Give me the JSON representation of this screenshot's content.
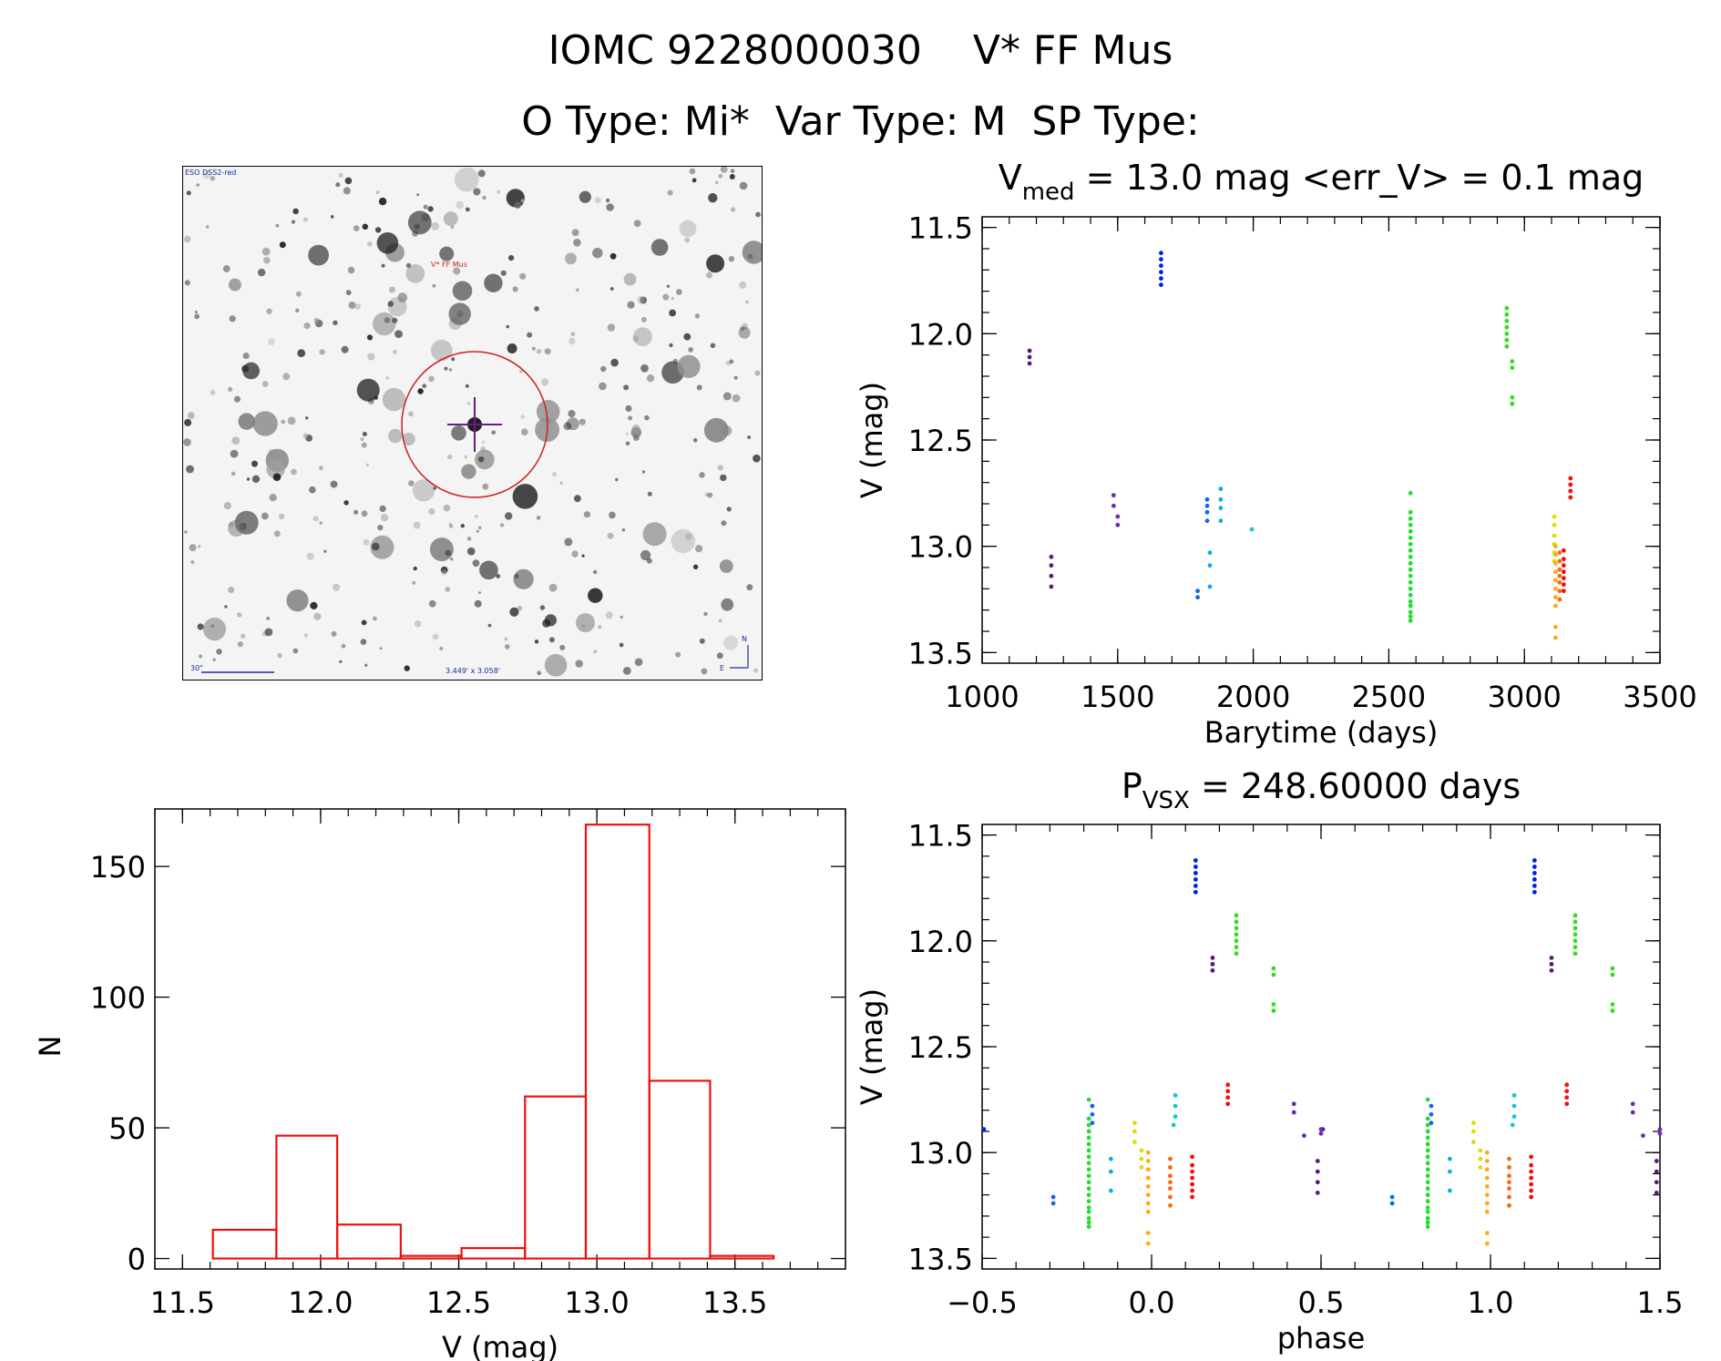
{
  "header": {
    "line1": "IOMC 9228000030    V* FF Mus",
    "line2": "O Type: Mi*  Var Type: M  SP Type:"
  },
  "finding_chart": {
    "survey_label": "ESO DSS2-red",
    "target_label": "V* FF Mus",
    "scale_label": "30\"",
    "fov_label": "3.449' x 3.058'",
    "compass_n": "N",
    "compass_e": "E"
  },
  "chart_data": [
    {
      "id": "lightcurve",
      "type": "scatter",
      "title_prefix": "V",
      "title_sub": "med",
      "title_rest": " = 13.0 mag <err_V> = 0.1 mag",
      "xlabel": "Barytime (days)",
      "ylabel": "V (mag)",
      "xlim": [
        1000,
        3500
      ],
      "ylim": [
        13.55,
        11.45
      ],
      "xticks": [
        "1000",
        "1500",
        "2000",
        "2500",
        "3000",
        "3500"
      ],
      "yticks": [
        "11.5",
        "12.0",
        "12.5",
        "13.0",
        "13.5"
      ],
      "groups": [
        {
          "color": "#5a1a78",
          "t": [
            1175,
            1175,
            1175
          ],
          "v": [
            12.08,
            12.11,
            12.14
          ]
        },
        {
          "color": "#5a1a78",
          "t": [
            1255,
            1255,
            1255,
            1255
          ],
          "v": [
            13.05,
            13.09,
            13.14,
            13.19
          ]
        },
        {
          "color": "#6a2ab8",
          "t": [
            1485,
            1485,
            1500,
            1500
          ],
          "v": [
            12.76,
            12.81,
            12.86,
            12.9
          ]
        },
        {
          "color": "#0022dd",
          "t": [
            1660,
            1660,
            1660,
            1660,
            1660,
            1660
          ],
          "v": [
            11.62,
            11.65,
            11.68,
            11.71,
            11.74,
            11.77
          ]
        },
        {
          "color": "#1166ee",
          "t": [
            1795,
            1795,
            1830,
            1830,
            1830,
            1830
          ],
          "v": [
            13.21,
            13.24,
            12.78,
            12.81,
            12.84,
            12.88
          ]
        },
        {
          "color": "#11aaee",
          "t": [
            1840,
            1840,
            1840,
            1880,
            1880,
            1880,
            1880
          ],
          "v": [
            13.03,
            13.09,
            13.19,
            12.73,
            12.78,
            12.82,
            12.88
          ]
        },
        {
          "color": "#11cccc",
          "t": [
            1995
          ],
          "v": [
            12.92
          ]
        },
        {
          "color": "#22dd33",
          "t": [
            2580,
            2580,
            2580,
            2580,
            2580,
            2580,
            2580,
            2580,
            2580,
            2580,
            2580,
            2580,
            2580,
            2580,
            2580,
            2580,
            2580,
            2580,
            2580,
            2580
          ],
          "v": [
            12.75,
            12.84,
            12.87,
            12.9,
            12.93,
            12.96,
            12.99,
            13.02,
            13.05,
            13.08,
            13.11,
            13.14,
            13.17,
            13.2,
            13.23,
            13.26,
            13.28,
            13.31,
            13.33,
            13.35
          ]
        },
        {
          "color": "#33dd22",
          "t": [
            2935,
            2935,
            2935,
            2935,
            2935,
            2935,
            2935,
            2955,
            2955,
            2955,
            2955
          ],
          "v": [
            11.88,
            11.91,
            11.94,
            11.97,
            12.0,
            12.03,
            12.06,
            12.13,
            12.16,
            12.3,
            12.33
          ]
        },
        {
          "color": "#dddd11",
          "t": [
            3110,
            3110,
            3110,
            3110,
            3110,
            3110
          ],
          "v": [
            12.86,
            12.9,
            12.95,
            12.99,
            13.03,
            13.07
          ]
        },
        {
          "color": "#ffaa11",
          "t": [
            3115,
            3115,
            3115,
            3115,
            3115,
            3115,
            3115,
            3115,
            3115,
            3115
          ],
          "v": [
            13.0,
            13.04,
            13.08,
            13.12,
            13.16,
            13.2,
            13.24,
            13.28,
            13.38,
            13.43
          ]
        },
        {
          "color": "#ff6611",
          "t": [
            3130,
            3130,
            3130,
            3130,
            3130,
            3130,
            3130
          ],
          "v": [
            13.03,
            13.07,
            13.11,
            13.14,
            13.17,
            13.21,
            13.25
          ]
        },
        {
          "color": "#ee1111",
          "t": [
            3145,
            3145,
            3145,
            3145,
            3145,
            3145,
            3145,
            3170,
            3170,
            3170,
            3170
          ],
          "v": [
            13.02,
            13.06,
            13.09,
            13.12,
            13.15,
            13.18,
            13.21,
            12.68,
            12.71,
            12.74,
            12.77
          ]
        }
      ]
    },
    {
      "id": "histogram",
      "type": "bar",
      "xlabel": "V (mag)",
      "ylabel": "N",
      "xlim": [
        11.4,
        13.9
      ],
      "ylim": [
        -4,
        172
      ],
      "xticks": [
        "11.5",
        "12.0",
        "12.5",
        "13.0",
        "13.5"
      ],
      "yticks": [
        "0",
        "50",
        "100",
        "150"
      ],
      "bins": [
        {
          "x0": 11.61,
          "x1": 11.84,
          "n": 11
        },
        {
          "x0": 11.84,
          "x1": 12.06,
          "n": 47
        },
        {
          "x0": 12.06,
          "x1": 12.29,
          "n": 13
        },
        {
          "x0": 12.29,
          "x1": 12.51,
          "n": 1
        },
        {
          "x0": 12.51,
          "x1": 12.74,
          "n": 4
        },
        {
          "x0": 12.74,
          "x1": 12.96,
          "n": 62
        },
        {
          "x0": 12.96,
          "x1": 13.19,
          "n": 166
        },
        {
          "x0": 13.19,
          "x1": 13.41,
          "n": 68
        },
        {
          "x0": 13.41,
          "x1": 13.64,
          "n": 1
        }
      ]
    },
    {
      "id": "phased",
      "type": "scatter",
      "title_prefix": "P",
      "title_sub": "VSX",
      "title_rest": " = 248.60000 days",
      "xlabel": "phase",
      "ylabel": "V (mag)",
      "xlim": [
        -0.5,
        1.5
      ],
      "ylim": [
        13.55,
        11.45
      ],
      "xticks": [
        "−0.5",
        "0.0",
        "0.5",
        "1.0",
        "1.5"
      ],
      "yticks": [
        "11.5",
        "12.0",
        "12.5",
        "13.0",
        "13.5"
      ],
      "period_shift": 1.0,
      "groups": [
        {
          "color": "#0022dd",
          "p": [
            -0.495,
            0.13,
            0.13,
            0.13,
            0.13,
            0.13,
            0.13
          ],
          "v": [
            12.89,
            11.62,
            11.65,
            11.68,
            11.71,
            11.74,
            11.77
          ]
        },
        {
          "color": "#1166ee",
          "p": [
            -0.29,
            -0.29,
            -0.175,
            -0.175,
            -0.175
          ],
          "v": [
            13.21,
            13.24,
            12.78,
            12.82,
            12.86
          ]
        },
        {
          "color": "#11aaee",
          "p": [
            -0.12,
            -0.12,
            -0.12
          ],
          "v": [
            13.03,
            13.09,
            13.18
          ]
        },
        {
          "color": "#11cccc",
          "p": [
            0.07,
            0.07,
            0.07,
            0.065
          ],
          "v": [
            12.73,
            12.78,
            12.83,
            12.87
          ]
        },
        {
          "color": "#22dd33",
          "p": [
            -0.185,
            -0.185,
            -0.185,
            -0.185,
            -0.185,
            -0.185,
            -0.185,
            -0.185,
            -0.185,
            -0.185,
            -0.185,
            -0.185,
            -0.185,
            -0.185,
            -0.185,
            -0.185,
            -0.185,
            -0.185,
            -0.185,
            -0.185
          ],
          "v": [
            12.75,
            12.84,
            12.87,
            12.9,
            12.93,
            12.96,
            12.99,
            13.02,
            13.05,
            13.08,
            13.11,
            13.14,
            13.17,
            13.2,
            13.23,
            13.26,
            13.28,
            13.31,
            13.33,
            13.35
          ]
        },
        {
          "color": "#33dd22",
          "p": [
            0.25,
            0.25,
            0.25,
            0.25,
            0.25,
            0.25,
            0.25,
            0.36,
            0.36,
            0.36,
            0.36
          ],
          "v": [
            11.88,
            11.91,
            11.94,
            11.97,
            12.0,
            12.03,
            12.06,
            12.13,
            12.16,
            12.3,
            12.33
          ]
        },
        {
          "color": "#dddd11",
          "p": [
            -0.05,
            -0.05,
            -0.05,
            -0.03,
            -0.03,
            -0.03
          ],
          "v": [
            12.86,
            12.9,
            12.95,
            12.99,
            13.03,
            13.07
          ]
        },
        {
          "color": "#ffaa11",
          "p": [
            -0.01,
            -0.01,
            -0.01,
            -0.01,
            -0.01,
            -0.01,
            -0.01,
            -0.01,
            -0.01,
            -0.01
          ],
          "v": [
            13.0,
            13.04,
            13.08,
            13.12,
            13.16,
            13.2,
            13.24,
            13.28,
            13.38,
            13.43
          ]
        },
        {
          "color": "#ff6611",
          "p": [
            0.055,
            0.055,
            0.055,
            0.055,
            0.055,
            0.055,
            0.055
          ],
          "v": [
            13.03,
            13.07,
            13.11,
            13.14,
            13.17,
            13.21,
            13.25
          ]
        },
        {
          "color": "#ee1111",
          "p": [
            0.12,
            0.12,
            0.12,
            0.12,
            0.12,
            0.12,
            0.12,
            0.225,
            0.225,
            0.225,
            0.225
          ],
          "v": [
            13.02,
            13.06,
            13.09,
            13.12,
            13.15,
            13.18,
            13.21,
            12.68,
            12.71,
            12.74,
            12.77
          ]
        },
        {
          "color": "#6a2ab8",
          "p": [
            0.42,
            0.42,
            0.45,
            0.5,
            0.5
          ],
          "v": [
            12.77,
            12.81,
            12.92,
            12.89,
            12.91
          ]
        },
        {
          "color": "#5a1a78",
          "p": [
            0.18,
            0.18,
            0.18,
            0.49,
            0.49,
            0.49,
            0.49
          ],
          "v": [
            12.08,
            12.11,
            12.14,
            13.04,
            13.09,
            13.14,
            13.19
          ]
        }
      ]
    }
  ]
}
